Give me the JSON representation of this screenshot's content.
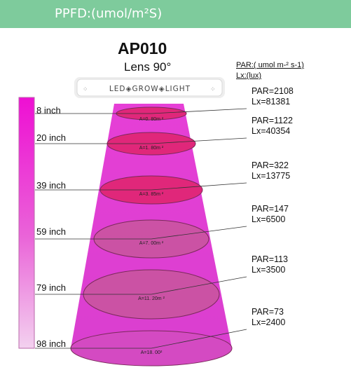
{
  "header": {
    "title": "PPFD:(umol/m²S)"
  },
  "product": {
    "model": "AP010",
    "lens": "Lens 90°",
    "lamp_label": "LED◈GROW◈LIGHT"
  },
  "legend": {
    "par": "PAR:( umol m-² s-1)",
    "lx": "Lx:(lux)"
  },
  "colors": {
    "header": "#7ecb9c",
    "beam": "#e23fd3",
    "ellipse": "#e0277a",
    "bar_top": "#ee0fd3",
    "bar_bottom": "#f2cfee"
  },
  "levels": [
    {
      "distance": "8 inch",
      "area": "A=0. 80m ²",
      "par": "PAR=2108",
      "lx": "Lx=81381"
    },
    {
      "distance": "20 inch",
      "area": "A=1. 80m ²",
      "par": "PAR=1122",
      "lx": "Lx=40354"
    },
    {
      "distance": "39 inch",
      "area": "A=3. 85m ²",
      "par": "PAR=322",
      "lx": "Lx=13775"
    },
    {
      "distance": "59 inch",
      "area": "A=7. 00m ²",
      "par": "PAR=147",
      "lx": "Lx=6500"
    },
    {
      "distance": "79 inch",
      "area": "A=11. 20m ²",
      "par": "PAR=113",
      "lx": "Lx=3500"
    },
    {
      "distance": "98 inch",
      "area": "A=18. 00²",
      "par": "PAR=73",
      "lx": "Lx=2400"
    }
  ]
}
